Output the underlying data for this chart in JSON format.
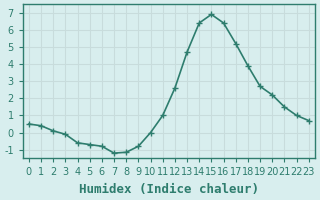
{
  "x": [
    0,
    1,
    2,
    3,
    4,
    5,
    6,
    7,
    8,
    9,
    10,
    11,
    12,
    13,
    14,
    15,
    16,
    17,
    18,
    19,
    20,
    21,
    22,
    23
  ],
  "y": [
    0.5,
    0.4,
    0.1,
    -0.1,
    -0.6,
    -0.7,
    -0.8,
    -1.2,
    -1.15,
    -0.8,
    0.0,
    1.0,
    2.6,
    4.7,
    6.4,
    6.9,
    6.4,
    5.2,
    3.9,
    2.7,
    2.2,
    1.5,
    1.0,
    0.7
  ],
  "line_color": "#2e7d6e",
  "marker": "+",
  "marker_size": 5,
  "bg_color": "#d8eeee",
  "grid_color": "#c8dcdc",
  "xlabel": "Humidex (Indice chaleur)",
  "xlabel_fontsize": 9,
  "xlim": [
    -0.5,
    23.5
  ],
  "ylim": [
    -1.5,
    7.5
  ],
  "yticks": [
    -1,
    0,
    1,
    2,
    3,
    4,
    5,
    6,
    7
  ],
  "xticks": [
    0,
    1,
    2,
    3,
    4,
    5,
    6,
    7,
    8,
    9,
    10,
    11,
    12,
    13,
    14,
    15,
    16,
    17,
    18,
    19,
    20,
    21,
    22,
    23
  ],
  "tick_fontsize": 7,
  "spine_color": "#2e7d6e",
  "line_width": 1.2
}
